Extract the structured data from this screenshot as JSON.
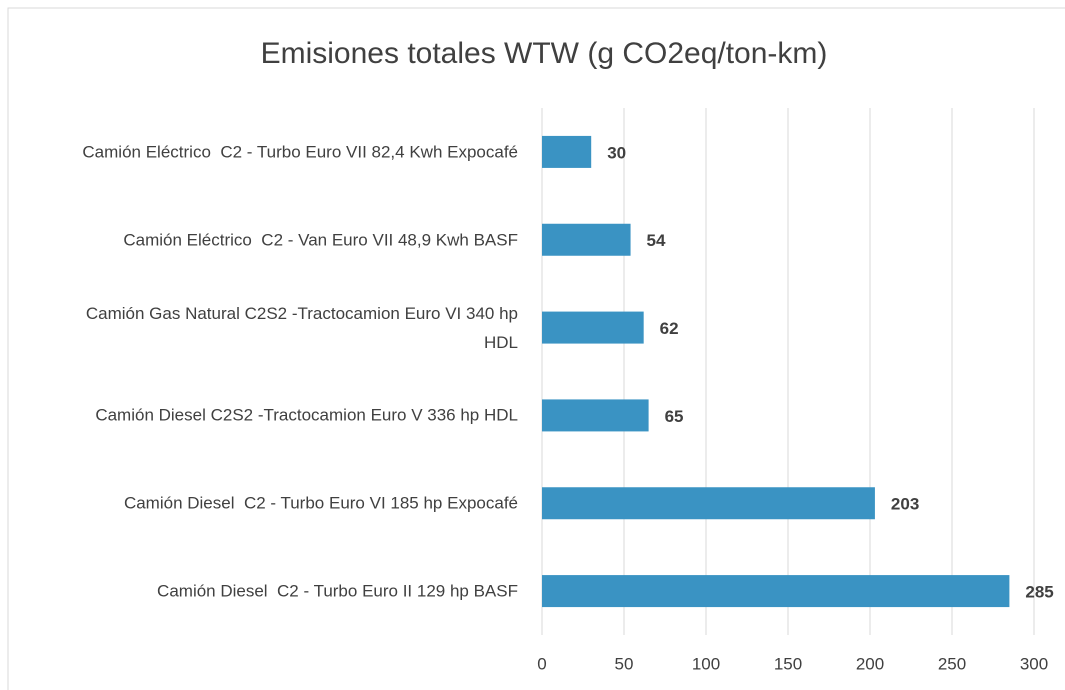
{
  "chart_data": {
    "type": "barh",
    "title": "Emisiones totales WTW (g CO2eq/ton-km)",
    "categories": [
      "Camión Eléctrico  C2 - Turbo Euro VII 82,4 Kwh Expocafé",
      "Camión Eléctrico  C2 - Van Euro VII 48,9 Kwh BASF",
      "Camión Gas Natural C2S2 -Tractocamion Euro VI 340 hp HDL",
      "Camión Diesel C2S2 -Tractocamion Euro V 336 hp HDL",
      "Camión Diesel  C2 - Turbo Euro VI 185 hp Expocafé",
      "Camión Diesel  C2 - Turbo Euro II 129 hp BASF"
    ],
    "values": [
      30,
      54,
      62,
      65,
      203,
      285
    ],
    "color": "#3a93c3",
    "xlim": [
      0,
      300
    ],
    "xticks": [
      0,
      50,
      100,
      150,
      200,
      250,
      300
    ],
    "grid": true
  }
}
